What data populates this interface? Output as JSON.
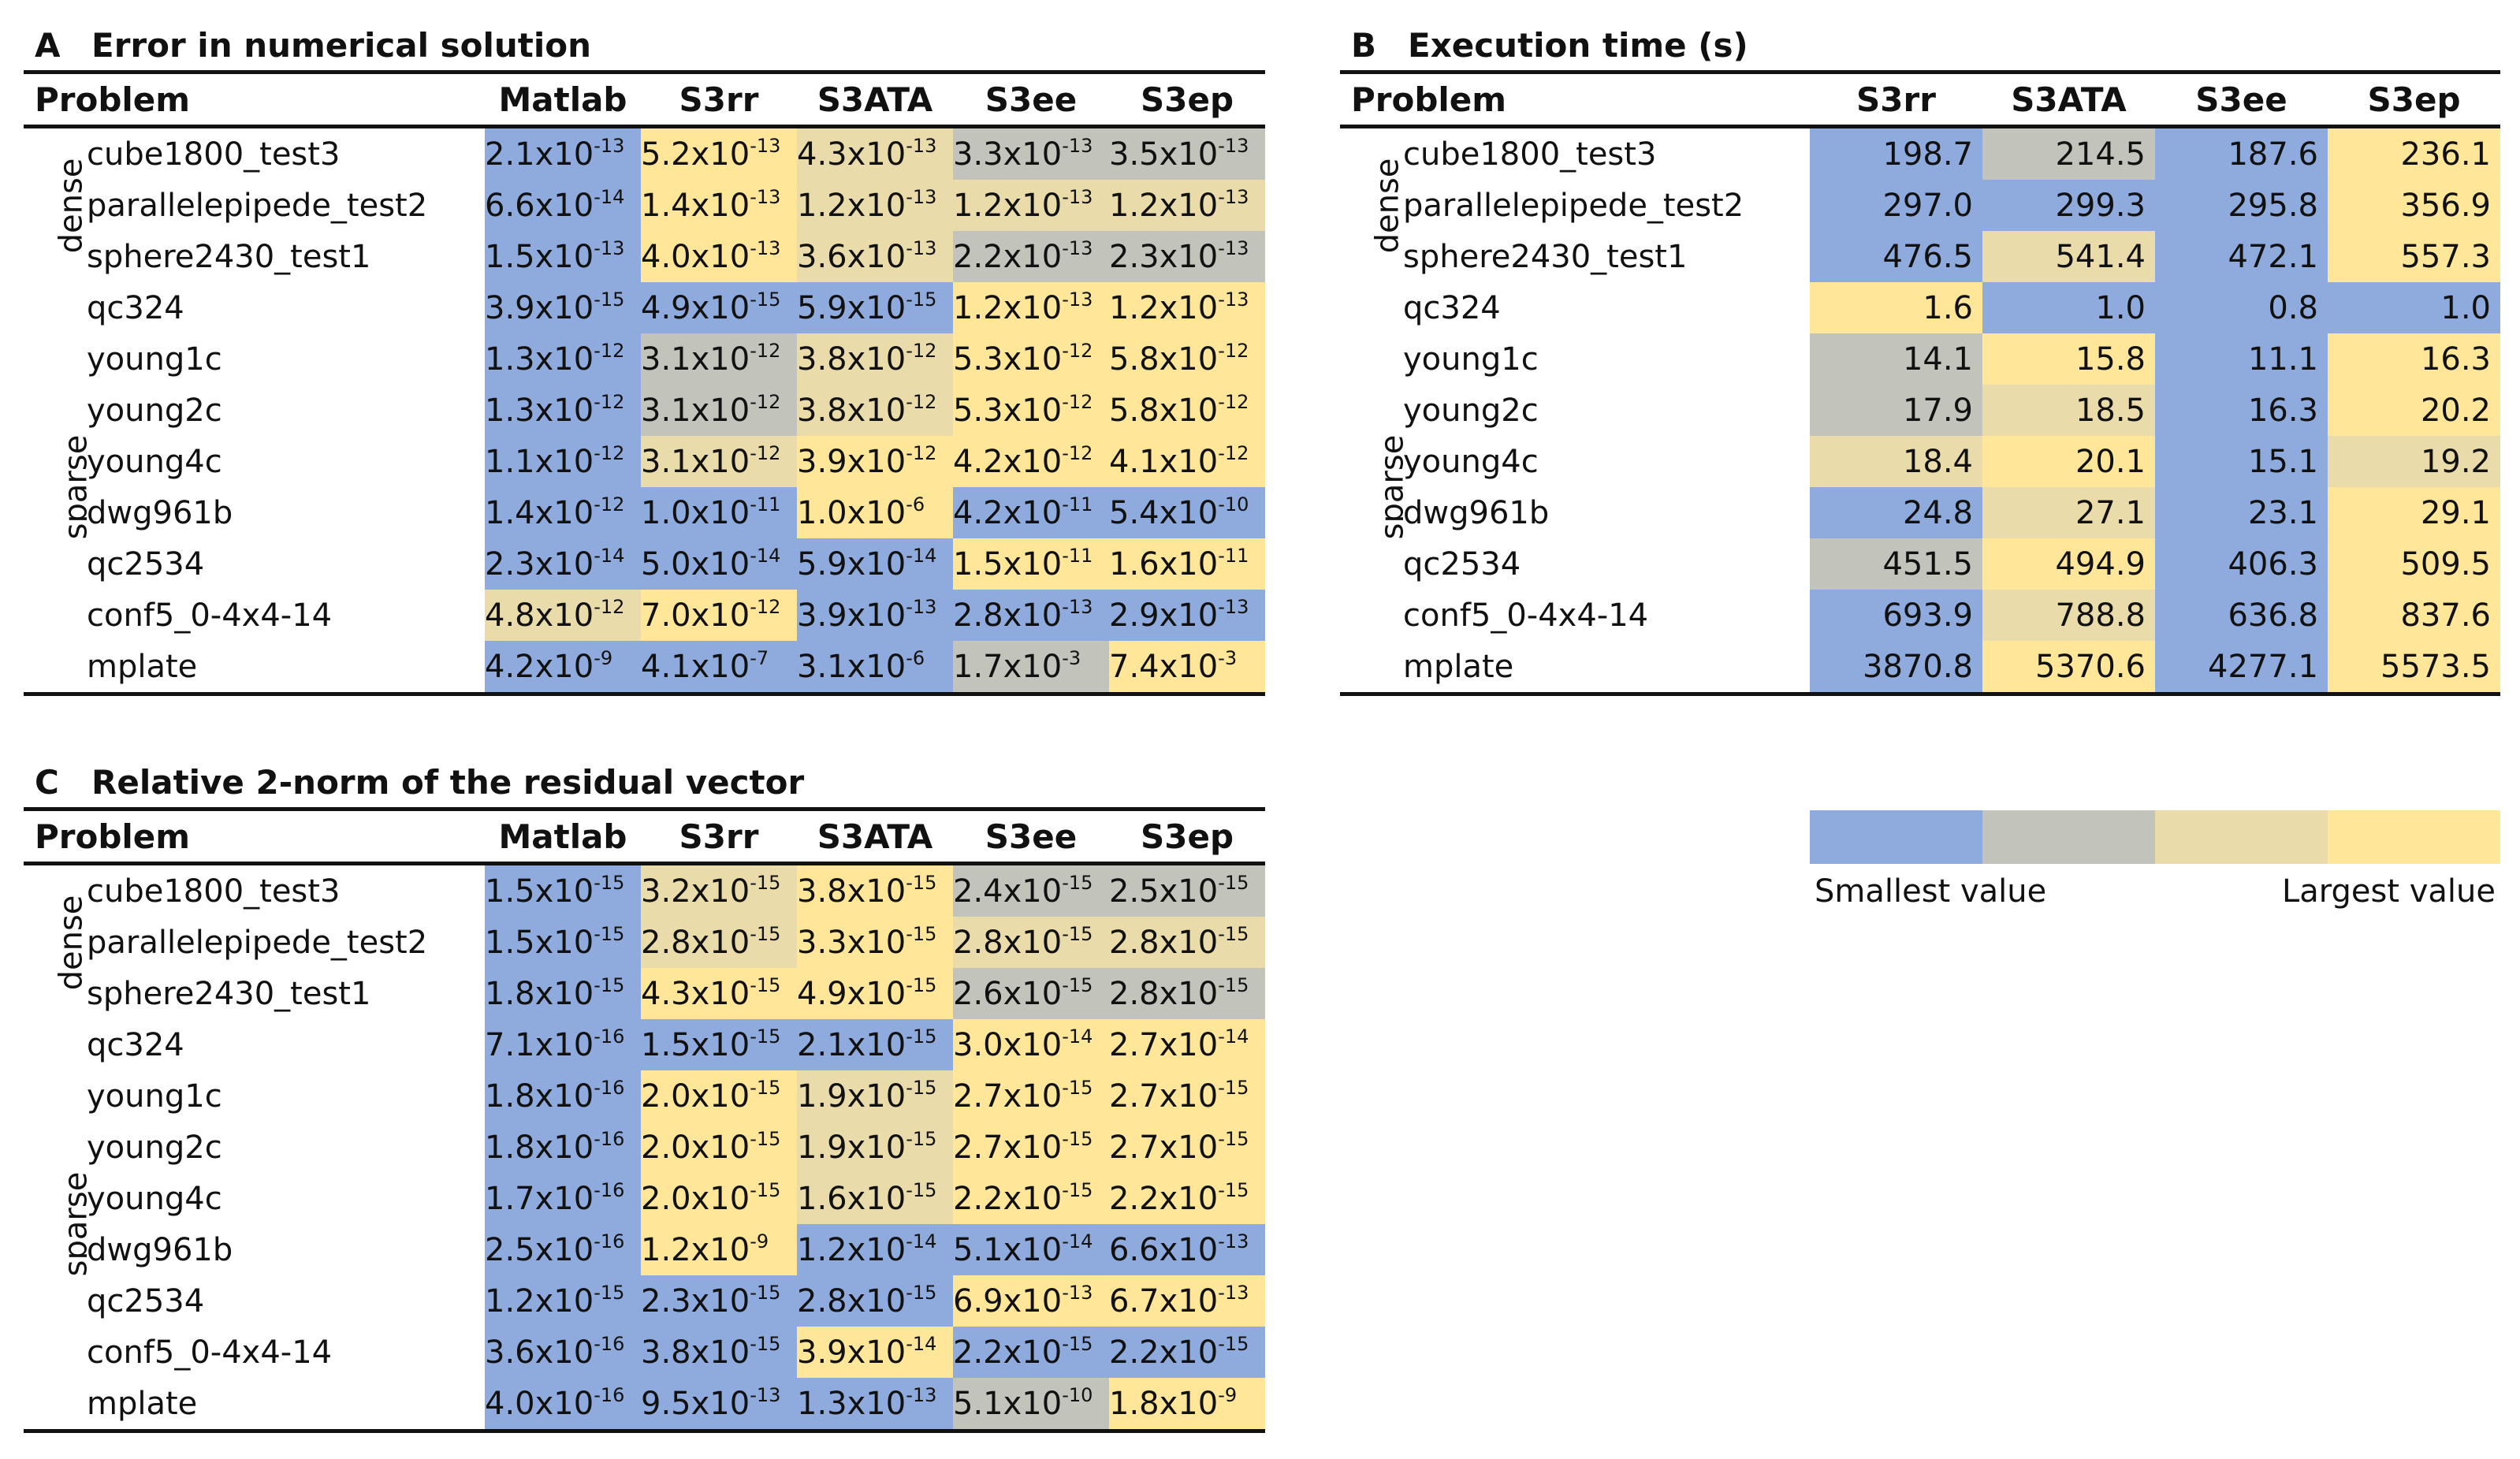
{
  "palette": {
    "c0": "#8FAADC",
    "c1": "#C2C4BC",
    "c2": "#E9DBAA",
    "c3": "#FFE699"
  },
  "legend": {
    "smallest_label": "Smallest value",
    "largest_label": "Largest value",
    "swatches": [
      "#8FAADC",
      "#C2C4BC",
      "#E9DBAA",
      "#FFE699"
    ]
  },
  "group_labels": {
    "dense": "dense",
    "sparse": "sparse"
  },
  "chart_data": [
    {
      "type": "table",
      "panel": "A",
      "title": "Error in numerical solution",
      "problem_header": "Problem",
      "columns": [
        "Matlab",
        "S3rr",
        "S3ATA",
        "S3ee",
        "S3ep"
      ],
      "rows": [
        {
          "group": "dense",
          "problem": "cube1800_test3",
          "values": [
            [
              "2.1x10",
              "-13"
            ],
            [
              "5.2x10",
              "-13"
            ],
            [
              "4.3x10",
              "-13"
            ],
            [
              "3.3x10",
              "-13"
            ],
            [
              "3.5x10",
              "-13"
            ]
          ],
          "colors": [
            "c0",
            "c3",
            "c2",
            "c1",
            "c1"
          ]
        },
        {
          "group": "dense",
          "problem": "parallelepipede_test2",
          "values": [
            [
              "6.6x10",
              "-14"
            ],
            [
              "1.4x10",
              "-13"
            ],
            [
              "1.2x10",
              "-13"
            ],
            [
              "1.2x10",
              "-13"
            ],
            [
              "1.2x10",
              "-13"
            ]
          ],
          "colors": [
            "c0",
            "c3",
            "c2",
            "c2",
            "c2"
          ]
        },
        {
          "group": "dense",
          "problem": "sphere2430_test1",
          "values": [
            [
              "1.5x10",
              "-13"
            ],
            [
              "4.0x10",
              "-13"
            ],
            [
              "3.6x10",
              "-13"
            ],
            [
              "2.2x10",
              "-13"
            ],
            [
              "2.3x10",
              "-13"
            ]
          ],
          "colors": [
            "c0",
            "c3",
            "c2",
            "c1",
            "c1"
          ]
        },
        {
          "group": "sparse",
          "problem": "qc324",
          "values": [
            [
              "3.9x10",
              "-15"
            ],
            [
              "4.9x10",
              "-15"
            ],
            [
              "5.9x10",
              "-15"
            ],
            [
              "1.2x10",
              "-13"
            ],
            [
              "1.2x10",
              "-13"
            ]
          ],
          "colors": [
            "c0",
            "c0",
            "c0",
            "c3",
            "c3"
          ]
        },
        {
          "group": "sparse",
          "problem": "young1c",
          "values": [
            [
              "1.3x10",
              "-12"
            ],
            [
              "3.1x10",
              "-12"
            ],
            [
              "3.8x10",
              "-12"
            ],
            [
              "5.3x10",
              "-12"
            ],
            [
              "5.8x10",
              "-12"
            ]
          ],
          "colors": [
            "c0",
            "c1",
            "c2",
            "c3",
            "c3"
          ]
        },
        {
          "group": "sparse",
          "problem": "young2c",
          "values": [
            [
              "1.3x10",
              "-12"
            ],
            [
              "3.1x10",
              "-12"
            ],
            [
              "3.8x10",
              "-12"
            ],
            [
              "5.3x10",
              "-12"
            ],
            [
              "5.8x10",
              "-12"
            ]
          ],
          "colors": [
            "c0",
            "c1",
            "c2",
            "c3",
            "c3"
          ]
        },
        {
          "group": "sparse",
          "problem": "young4c",
          "values": [
            [
              "1.1x10",
              "-12"
            ],
            [
              "3.1x10",
              "-12"
            ],
            [
              "3.9x10",
              "-12"
            ],
            [
              "4.2x10",
              "-12"
            ],
            [
              "4.1x10",
              "-12"
            ]
          ],
          "colors": [
            "c0",
            "c2",
            "c3",
            "c3",
            "c3"
          ]
        },
        {
          "group": "sparse",
          "problem": "dwg961b",
          "values": [
            [
              "1.4x10",
              "-12"
            ],
            [
              "1.0x10",
              "-11"
            ],
            [
              "1.0x10",
              "-6"
            ],
            [
              "4.2x10",
              "-11"
            ],
            [
              "5.4x10",
              "-10"
            ]
          ],
          "colors": [
            "c0",
            "c0",
            "c3",
            "c0",
            "c0"
          ]
        },
        {
          "group": "sparse",
          "problem": "qc2534",
          "values": [
            [
              "2.3x10",
              "-14"
            ],
            [
              "5.0x10",
              "-14"
            ],
            [
              "5.9x10",
              "-14"
            ],
            [
              "1.5x10",
              "-11"
            ],
            [
              "1.6x10",
              "-11"
            ]
          ],
          "colors": [
            "c0",
            "c0",
            "c0",
            "c3",
            "c3"
          ]
        },
        {
          "group": "sparse",
          "problem": "conf5_0-4x4-14",
          "values": [
            [
              "4.8x10",
              "-12"
            ],
            [
              "7.0x10",
              "-12"
            ],
            [
              "3.9x10",
              "-13"
            ],
            [
              "2.8x10",
              "-13"
            ],
            [
              "2.9x10",
              "-13"
            ]
          ],
          "colors": [
            "c2",
            "c3",
            "c0",
            "c0",
            "c0"
          ]
        },
        {
          "group": "sparse",
          "problem": "mplate",
          "values": [
            [
              "4.2x10",
              "-9"
            ],
            [
              "4.1x10",
              "-7"
            ],
            [
              "3.1x10",
              "-6"
            ],
            [
              "1.7x10",
              "-3"
            ],
            [
              "7.4x10",
              "-3"
            ]
          ],
          "colors": [
            "c0",
            "c0",
            "c0",
            "c1",
            "c3"
          ]
        }
      ]
    },
    {
      "type": "table",
      "panel": "B",
      "title": "Execution time (s)",
      "problem_header": "Problem",
      "columns": [
        "S3rr",
        "S3ATA",
        "S3ee",
        "S3ep"
      ],
      "rows": [
        {
          "group": "dense",
          "problem": "cube1800_test3",
          "values": [
            [
              "198.7"
            ],
            [
              "214.5"
            ],
            [
              "187.6"
            ],
            [
              "236.1"
            ]
          ],
          "colors": [
            "c0",
            "c1",
            "c0",
            "c3"
          ]
        },
        {
          "group": "dense",
          "problem": "parallelepipede_test2",
          "values": [
            [
              "297.0"
            ],
            [
              "299.3"
            ],
            [
              "295.8"
            ],
            [
              "356.9"
            ]
          ],
          "colors": [
            "c0",
            "c0",
            "c0",
            "c3"
          ]
        },
        {
          "group": "dense",
          "problem": "sphere2430_test1",
          "values": [
            [
              "476.5"
            ],
            [
              "541.4"
            ],
            [
              "472.1"
            ],
            [
              "557.3"
            ]
          ],
          "colors": [
            "c0",
            "c2",
            "c0",
            "c3"
          ]
        },
        {
          "group": "sparse",
          "problem": "qc324",
          "values": [
            [
              "1.6"
            ],
            [
              "1.0"
            ],
            [
              "0.8"
            ],
            [
              "1.0"
            ]
          ],
          "colors": [
            "c3",
            "c0",
            "c0",
            "c0"
          ]
        },
        {
          "group": "sparse",
          "problem": "young1c",
          "values": [
            [
              "14.1"
            ],
            [
              "15.8"
            ],
            [
              "11.1"
            ],
            [
              "16.3"
            ]
          ],
          "colors": [
            "c1",
            "c3",
            "c0",
            "c3"
          ]
        },
        {
          "group": "sparse",
          "problem": "young2c",
          "values": [
            [
              "17.9"
            ],
            [
              "18.5"
            ],
            [
              "16.3"
            ],
            [
              "20.2"
            ]
          ],
          "colors": [
            "c1",
            "c2",
            "c0",
            "c3"
          ]
        },
        {
          "group": "sparse",
          "problem": "young4c",
          "values": [
            [
              "18.4"
            ],
            [
              "20.1"
            ],
            [
              "15.1"
            ],
            [
              "19.2"
            ]
          ],
          "colors": [
            "c2",
            "c3",
            "c0",
            "c2"
          ]
        },
        {
          "group": "sparse",
          "problem": "dwg961b",
          "values": [
            [
              "24.8"
            ],
            [
              "27.1"
            ],
            [
              "23.1"
            ],
            [
              "29.1"
            ]
          ],
          "colors": [
            "c0",
            "c2",
            "c0",
            "c3"
          ]
        },
        {
          "group": "sparse",
          "problem": "qc2534",
          "values": [
            [
              "451.5"
            ],
            [
              "494.9"
            ],
            [
              "406.3"
            ],
            [
              "509.5"
            ]
          ],
          "colors": [
            "c1",
            "c3",
            "c0",
            "c3"
          ]
        },
        {
          "group": "sparse",
          "problem": "conf5_0-4x4-14",
          "values": [
            [
              "693.9"
            ],
            [
              "788.8"
            ],
            [
              "636.8"
            ],
            [
              "837.6"
            ]
          ],
          "colors": [
            "c0",
            "c2",
            "c0",
            "c3"
          ]
        },
        {
          "group": "sparse",
          "problem": "mplate",
          "values": [
            [
              "3870.8"
            ],
            [
              "5370.6"
            ],
            [
              "4277.1"
            ],
            [
              "5573.5"
            ]
          ],
          "colors": [
            "c0",
            "c3",
            "c0",
            "c3"
          ]
        }
      ]
    },
    {
      "type": "table",
      "panel": "C",
      "title": "Relative 2-norm of the residual vector",
      "problem_header": "Problem",
      "columns": [
        "Matlab",
        "S3rr",
        "S3ATA",
        "S3ee",
        "S3ep"
      ],
      "rows": [
        {
          "group": "dense",
          "problem": "cube1800_test3",
          "values": [
            [
              "1.5x10",
              "-15"
            ],
            [
              "3.2x10",
              "-15"
            ],
            [
              "3.8x10",
              "-15"
            ],
            [
              "2.4x10",
              "-15"
            ],
            [
              "2.5x10",
              "-15"
            ]
          ],
          "colors": [
            "c0",
            "c2",
            "c3",
            "c1",
            "c1"
          ]
        },
        {
          "group": "dense",
          "problem": "parallelepipede_test2",
          "values": [
            [
              "1.5x10",
              "-15"
            ],
            [
              "2.8x10",
              "-15"
            ],
            [
              "3.3x10",
              "-15"
            ],
            [
              "2.8x10",
              "-15"
            ],
            [
              "2.8x10",
              "-15"
            ]
          ],
          "colors": [
            "c0",
            "c2",
            "c3",
            "c2",
            "c2"
          ]
        },
        {
          "group": "dense",
          "problem": "sphere2430_test1",
          "values": [
            [
              "1.8x10",
              "-15"
            ],
            [
              "4.3x10",
              "-15"
            ],
            [
              "4.9x10",
              "-15"
            ],
            [
              "2.6x10",
              "-15"
            ],
            [
              "2.8x10",
              "-15"
            ]
          ],
          "colors": [
            "c0",
            "c3",
            "c3",
            "c1",
            "c1"
          ]
        },
        {
          "group": "sparse",
          "problem": "qc324",
          "values": [
            [
              "7.1x10",
              "-16"
            ],
            [
              "1.5x10",
              "-15"
            ],
            [
              "2.1x10",
              "-15"
            ],
            [
              "3.0x10",
              "-14"
            ],
            [
              "2.7x10",
              "-14"
            ]
          ],
          "colors": [
            "c0",
            "c0",
            "c0",
            "c3",
            "c3"
          ]
        },
        {
          "group": "sparse",
          "problem": "young1c",
          "values": [
            [
              "1.8x10",
              "-16"
            ],
            [
              "2.0x10",
              "-15"
            ],
            [
              "1.9x10",
              "-15"
            ],
            [
              "2.7x10",
              "-15"
            ],
            [
              "2.7x10",
              "-15"
            ]
          ],
          "colors": [
            "c0",
            "c3",
            "c2",
            "c3",
            "c3"
          ]
        },
        {
          "group": "sparse",
          "problem": "young2c",
          "values": [
            [
              "1.8x10",
              "-16"
            ],
            [
              "2.0x10",
              "-15"
            ],
            [
              "1.9x10",
              "-15"
            ],
            [
              "2.7x10",
              "-15"
            ],
            [
              "2.7x10",
              "-15"
            ]
          ],
          "colors": [
            "c0",
            "c3",
            "c2",
            "c3",
            "c3"
          ]
        },
        {
          "group": "sparse",
          "problem": "young4c",
          "values": [
            [
              "1.7x10",
              "-16"
            ],
            [
              "2.0x10",
              "-15"
            ],
            [
              "1.6x10",
              "-15"
            ],
            [
              "2.2x10",
              "-15"
            ],
            [
              "2.2x10",
              "-15"
            ]
          ],
          "colors": [
            "c0",
            "c3",
            "c2",
            "c3",
            "c3"
          ]
        },
        {
          "group": "sparse",
          "problem": "dwg961b",
          "values": [
            [
              "2.5x10",
              "-16"
            ],
            [
              "1.2x10",
              "-9"
            ],
            [
              "1.2x10",
              "-14"
            ],
            [
              "5.1x10",
              "-14"
            ],
            [
              "6.6x10",
              "-13"
            ]
          ],
          "colors": [
            "c0",
            "c3",
            "c0",
            "c0",
            "c0"
          ]
        },
        {
          "group": "sparse",
          "problem": "qc2534",
          "values": [
            [
              "1.2x10",
              "-15"
            ],
            [
              "2.3x10",
              "-15"
            ],
            [
              "2.8x10",
              "-15"
            ],
            [
              "6.9x10",
              "-13"
            ],
            [
              "6.7x10",
              "-13"
            ]
          ],
          "colors": [
            "c0",
            "c0",
            "c0",
            "c3",
            "c3"
          ]
        },
        {
          "group": "sparse",
          "problem": "conf5_0-4x4-14",
          "values": [
            [
              "3.6x10",
              "-16"
            ],
            [
              "3.8x10",
              "-15"
            ],
            [
              "3.9x10",
              "-14"
            ],
            [
              "2.2x10",
              "-15"
            ],
            [
              "2.2x10",
              "-15"
            ]
          ],
          "colors": [
            "c0",
            "c0",
            "c3",
            "c0",
            "c0"
          ]
        },
        {
          "group": "sparse",
          "problem": "mplate",
          "values": [
            [
              "4.0x10",
              "-16"
            ],
            [
              "9.5x10",
              "-13"
            ],
            [
              "1.3x10",
              "-13"
            ],
            [
              "5.1x10",
              "-10"
            ],
            [
              "1.8x10",
              "-9"
            ]
          ],
          "colors": [
            "c0",
            "c0",
            "c0",
            "c1",
            "c3"
          ]
        }
      ]
    }
  ]
}
